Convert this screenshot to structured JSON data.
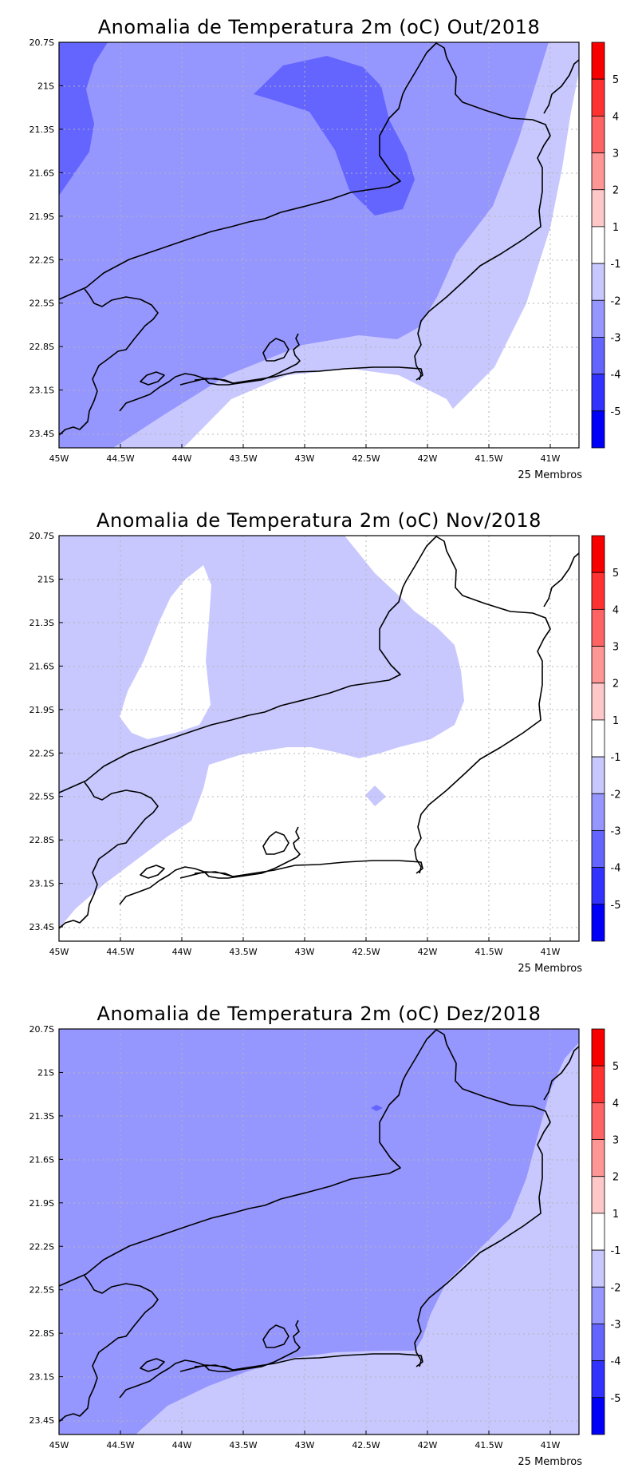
{
  "map_data": {
    "x_ticks": [
      "45W",
      "44.5W",
      "44W",
      "43.5W",
      "43W",
      "42.5W",
      "42W",
      "41.5W",
      "41W"
    ],
    "y_ticks": [
      "20.7S",
      "21S",
      "21.3S",
      "21.6S",
      "21.9S",
      "22.2S",
      "22.5S",
      "22.8S",
      "23.1S",
      "23.4S"
    ],
    "colorbar": {
      "colors": [
        "#f80000",
        "#ff3232",
        "#ff6464",
        "#ff9696",
        "#ffc8c8",
        "#ffffff",
        "#c8c8ff",
        "#9696ff",
        "#6464ff",
        "#3232ff",
        "#0000f8"
      ],
      "labels": [
        "5",
        "4",
        "3",
        "2",
        "1",
        "-1",
        "-2",
        "-3",
        "-4",
        "-5"
      ]
    },
    "panels": [
      {
        "title": "Anomalia de Temperatura 2m (oC) Out/2018",
        "members": "25 Membros",
        "background": "#9696ff"
      },
      {
        "title": "Anomalia de Temperatura 2m (oC) Nov/2018",
        "members": "25 Membros",
        "background": "#c8c8ff"
      },
      {
        "title": "Anomalia de Temperatura 2m (oC) Dez/2018",
        "members": "25 Membros",
        "background": "#9696ff"
      }
    ]
  }
}
